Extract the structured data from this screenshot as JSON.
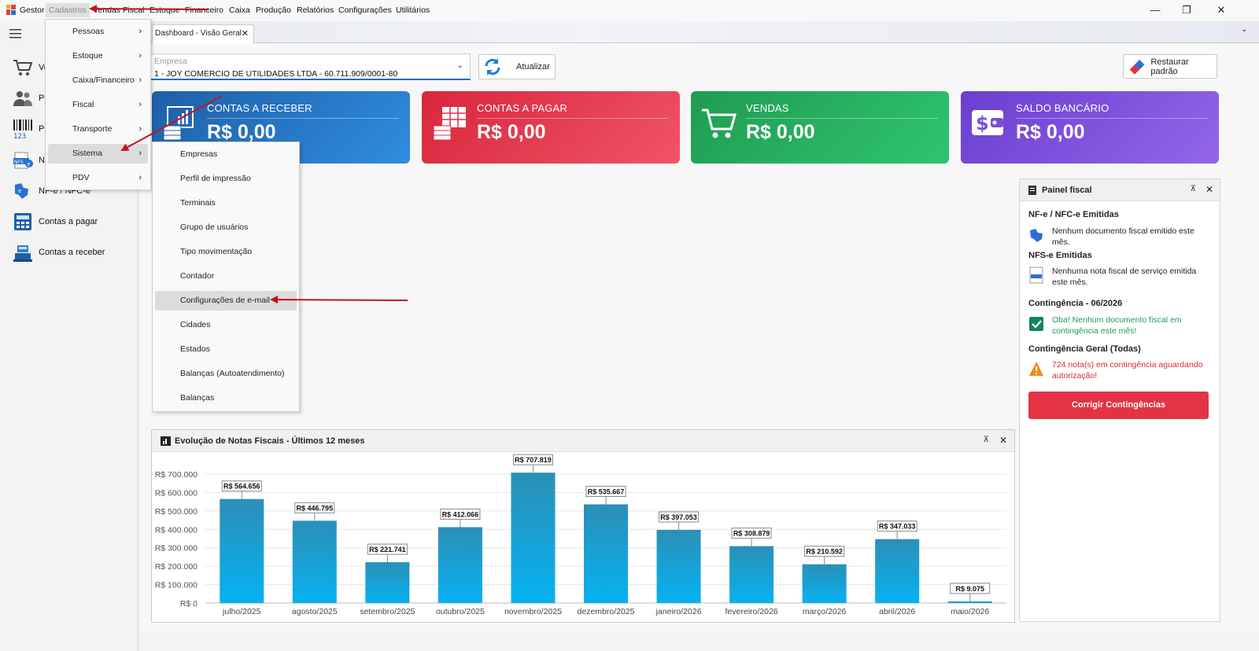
{
  "menubar": {
    "items": [
      "Gestor",
      "Cadastros",
      "Vendas",
      "Fiscal",
      "Estoque",
      "Financeiro",
      "Caixa",
      "Produção",
      "Relatórios",
      "Configurações",
      "Utilitários"
    ],
    "window_controls": {
      "minimize": "—",
      "restore": "❐",
      "close": "✕"
    }
  },
  "tabs": [
    {
      "label": "Dashboard - Visão Geral",
      "close": "✕"
    }
  ],
  "sidebar": {
    "items": [
      {
        "label": "Vendas",
        "icon": "cart-icon"
      },
      {
        "label": "Pessoas",
        "icon": "people-icon"
      },
      {
        "label": "Produtos",
        "icon": "barcode-icon"
      },
      {
        "label": "NFS-e",
        "icon": "nfse-icon"
      },
      {
        "label": "NF-e / NFC-e",
        "icon": "nfe-icon"
      },
      {
        "label": "Contas a pagar",
        "icon": "calculator-icon"
      },
      {
        "label": "Contas a receber",
        "icon": "cash-register-icon"
      }
    ]
  },
  "empresa": {
    "label": "Empresa",
    "value": "1 - JOY COMERCIO DE UTILIDADES LTDA - 60.711.909/0001-80"
  },
  "buttons": {
    "atualizar": "Atualizar",
    "restaurar": "Restaurar padrão",
    "corrigir": "Corrigir Contingências"
  },
  "kpis": [
    {
      "title": "CONTAS A RECEBER",
      "value": "R$ 0,00",
      "color": "#1f6fb8"
    },
    {
      "title": "CONTAS A PAGAR",
      "value": "R$ 0,00",
      "color": "#e03046"
    },
    {
      "title": "VENDAS",
      "value": "R$ 0,00",
      "color": "#25a35a"
    },
    {
      "title": "SALDO BANCÁRIO",
      "value": "R$ 0,00",
      "color": "#7b4fd6"
    }
  ],
  "fiscal": {
    "title": "Painel fiscal",
    "nfe_title": "NF-e / NFC-e Emitidas",
    "nfe_text": "Nenhum documento fiscal emitido este mês.",
    "nfse_title": "NFS-e Emitidas",
    "nfse_text": "Nenhuma nota fiscal de serviço emitida este mês.",
    "cont_title": "Contingência - 06/2026",
    "cont_text": "Oba! Nenhum documento fiscal em contingência este mês!",
    "contg_title": "Contingência Geral (Todas)",
    "contg_text": "724 nota(s) em contingência aguardando autorização!"
  },
  "chart_panel_title": "Evolução de Notas Fiscais - Últimos 12 meses",
  "chart_data": {
    "type": "bar",
    "title": "Evolução de Notas Fiscais - Últimos 12 meses",
    "categories": [
      "julho/2025",
      "agosto/2025",
      "setembro/2025",
      "outubro/2025",
      "novembro/2025",
      "dezembro/2025",
      "janeiro/2026",
      "fevereiro/2026",
      "março/2026",
      "abril/2026",
      "maio/2026"
    ],
    "values": [
      564656,
      446795,
      221741,
      412066,
      707819,
      535667,
      397053,
      308879,
      210592,
      347033,
      9075
    ],
    "labels": [
      "R$ 564.656",
      "R$ 446.795",
      "R$ 221.741",
      "R$ 412.066",
      "R$ 707.819",
      "R$ 535.667",
      "R$ 397.053",
      "R$ 308.879",
      "R$ 210.592",
      "R$ 347.033",
      "R$ 9.075"
    ],
    "yticks": [
      "R$ 0",
      "R$ 100.000",
      "R$ 200.000",
      "R$ 300.000",
      "R$ 400.000",
      "R$ 500.000",
      "R$ 600.000",
      "R$ 700.000"
    ],
    "ylim": [
      0,
      700000
    ],
    "grid": true
  },
  "menu_cadastros": [
    {
      "label": "Pessoas",
      "submenu": true
    },
    {
      "label": "Estoque",
      "submenu": true
    },
    {
      "label": "Caixa/Financeiro",
      "submenu": true
    },
    {
      "label": "Fiscal",
      "submenu": true
    },
    {
      "label": "Transporte",
      "submenu": true
    },
    {
      "label": "Sistema",
      "submenu": true,
      "highlight": true
    },
    {
      "label": "PDV",
      "submenu": true
    }
  ],
  "menu_sistema": [
    {
      "label": "Empresas"
    },
    {
      "label": "Perfil de impressão"
    },
    {
      "label": "Terminais"
    },
    {
      "label": "Grupo de usuários"
    },
    {
      "label": "Tipo movimentação"
    },
    {
      "label": "Contador"
    },
    {
      "label": "Configurações de e-mail",
      "highlight": true
    },
    {
      "label": "Cidades"
    },
    {
      "label": "Estados"
    },
    {
      "label": "Balanças (Autoatendimento)"
    },
    {
      "label": "Balanças"
    }
  ],
  "annotation_color": "#c0141c"
}
